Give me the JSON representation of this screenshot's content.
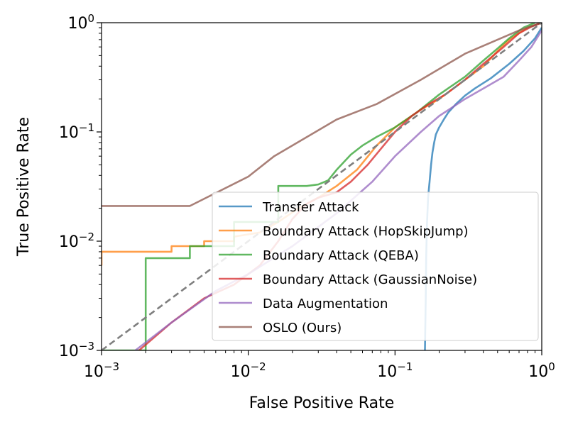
{
  "chart_data": {
    "type": "line",
    "title": "",
    "xlabel": "False Positive Rate",
    "ylabel": "True Positive Rate",
    "xscale": "log",
    "yscale": "log",
    "xlim": [
      0.001,
      1
    ],
    "ylim": [
      0.001,
      1
    ],
    "x_ticks": [
      {
        "base": "10",
        "exp": "−3",
        "value": 0.001
      },
      {
        "base": "10",
        "exp": "−2",
        "value": 0.01
      },
      {
        "base": "10",
        "exp": "−1",
        "value": 0.1
      },
      {
        "base": "10",
        "exp": "0",
        "value": 1
      }
    ],
    "y_ticks": [
      {
        "base": "10",
        "exp": "−3",
        "value": 0.001
      },
      {
        "base": "10",
        "exp": "−2",
        "value": 0.01
      },
      {
        "base": "10",
        "exp": "−1",
        "value": 0.1
      },
      {
        "base": "10",
        "exp": "0",
        "value": 1
      }
    ],
    "legend_position": "lower-right",
    "diagonal": {
      "x": [
        0.001,
        1
      ],
      "y": [
        0.001,
        1
      ],
      "color": "#7f7f7f",
      "style": "dashed"
    },
    "series": [
      {
        "name": "Transfer Attack",
        "color": "#1f77b4",
        "x": [
          0.16,
          0.162,
          0.163,
          0.165,
          0.168,
          0.172,
          0.176,
          0.18,
          0.185,
          0.19,
          0.2,
          0.215,
          0.23,
          0.26,
          0.3,
          0.35,
          0.45,
          0.6,
          0.75,
          0.9,
          1.0
        ],
        "y": [
          0.001,
          0.003,
          0.007,
          0.014,
          0.025,
          0.035,
          0.05,
          0.065,
          0.08,
          0.095,
          0.11,
          0.13,
          0.15,
          0.18,
          0.215,
          0.25,
          0.31,
          0.42,
          0.55,
          0.72,
          0.9
        ]
      },
      {
        "name": "Boundary Attack (HopSkipJump)",
        "color": "#ff7f0e",
        "x": [
          0.001,
          0.001,
          0.003,
          0.003,
          0.005,
          0.005,
          0.008,
          0.008,
          0.012,
          0.016,
          0.022,
          0.03,
          0.04,
          0.055,
          0.075,
          0.1,
          0.15,
          0.2,
          0.3,
          0.4,
          0.5,
          0.6,
          0.8,
          1.0
        ],
        "y": [
          0.006,
          0.008,
          0.008,
          0.009,
          0.009,
          0.01,
          0.01,
          0.011,
          0.012,
          0.015,
          0.02,
          0.025,
          0.032,
          0.045,
          0.075,
          0.11,
          0.16,
          0.2,
          0.3,
          0.4,
          0.55,
          0.7,
          0.9,
          1.0
        ]
      },
      {
        "name": "Boundary Attack (QEBA)",
        "color": "#2ca02c",
        "x": [
          0.001,
          0.002,
          0.002,
          0.004,
          0.004,
          0.008,
          0.008,
          0.016,
          0.016,
          0.025,
          0.03,
          0.035,
          0.04,
          0.05,
          0.06,
          0.075,
          0.1,
          0.14,
          0.2,
          0.3,
          0.4,
          0.5,
          0.6,
          0.75,
          0.9
        ],
        "y": [
          0.001,
          0.001,
          0.007,
          0.007,
          0.009,
          0.009,
          0.015,
          0.015,
          0.032,
          0.032,
          0.033,
          0.036,
          0.045,
          0.062,
          0.075,
          0.09,
          0.11,
          0.15,
          0.22,
          0.32,
          0.45,
          0.58,
          0.72,
          0.9,
          1.0
        ]
      },
      {
        "name": "Boundary Attack (GaussianNoise)",
        "color": "#d62728",
        "x": [
          0.0018,
          0.003,
          0.005,
          0.008,
          0.012,
          0.016,
          0.02,
          0.025,
          0.03,
          0.04,
          0.05,
          0.065,
          0.08,
          0.1,
          0.13,
          0.17,
          0.22,
          0.3,
          0.4,
          0.55,
          0.7,
          0.85,
          1.0
        ],
        "y": [
          0.001,
          0.0018,
          0.003,
          0.004,
          0.006,
          0.01,
          0.016,
          0.022,
          0.025,
          0.028,
          0.035,
          0.05,
          0.07,
          0.1,
          0.14,
          0.18,
          0.22,
          0.3,
          0.42,
          0.6,
          0.8,
          0.92,
          1.0
        ]
      },
      {
        "name": "Data Augmentation",
        "color": "#9467bd",
        "x": [
          0.0017,
          0.003,
          0.006,
          0.01,
          0.02,
          0.04,
          0.07,
          0.1,
          0.15,
          0.2,
          0.3,
          0.4,
          0.55,
          0.7,
          0.85,
          1.0
        ],
        "y": [
          0.001,
          0.0018,
          0.0035,
          0.005,
          0.009,
          0.018,
          0.035,
          0.06,
          0.1,
          0.14,
          0.2,
          0.25,
          0.32,
          0.45,
          0.6,
          0.85
        ]
      },
      {
        "name": "OSLO (Ours)",
        "color": "#8c564b",
        "x": [
          0.001,
          0.004,
          0.01,
          0.015,
          0.04,
          0.075,
          0.15,
          0.3,
          0.5,
          0.7,
          1.0
        ],
        "y": [
          0.021,
          0.021,
          0.039,
          0.06,
          0.13,
          0.18,
          0.3,
          0.52,
          0.7,
          0.85,
          1.0
        ]
      }
    ]
  }
}
